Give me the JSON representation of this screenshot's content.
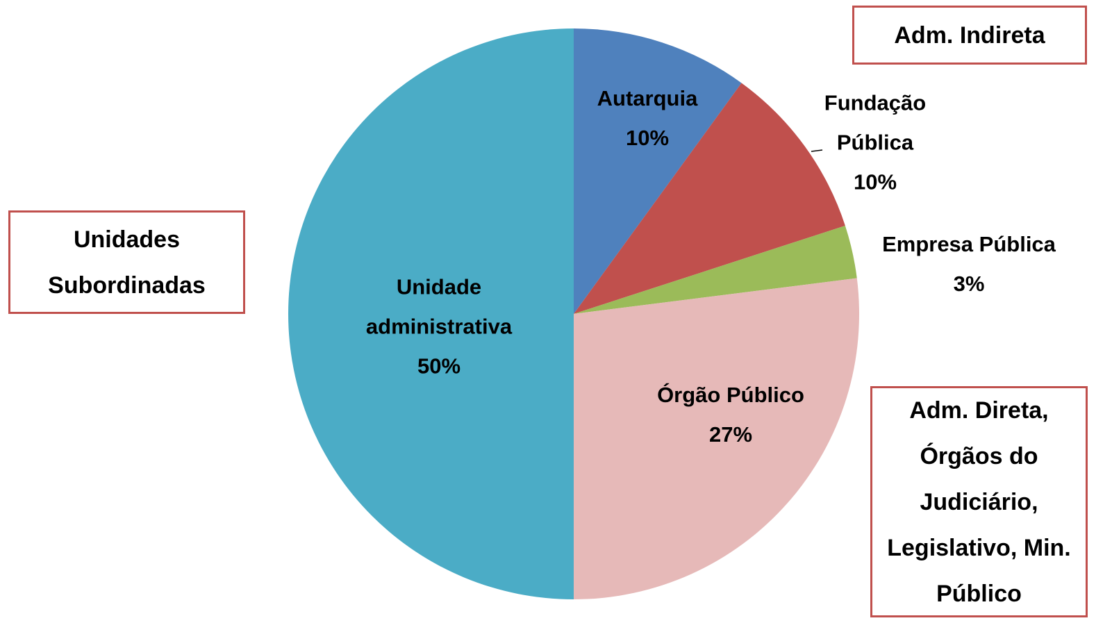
{
  "chart_data": {
    "type": "pie",
    "categories": [
      "Autarquia",
      "Fundação Pública",
      "Empresa Pública",
      "Órgão Público",
      "Unidade administrativa"
    ],
    "values": [
      10,
      10,
      3,
      27,
      50
    ],
    "value_labels": [
      "10%",
      "10%",
      "3%",
      "27%",
      "50%"
    ],
    "colors": [
      "#4f81bd",
      "#c0504d",
      "#9bbb59",
      "#e6b9b8",
      "#4bacc6"
    ],
    "annotations": [
      "Adm. Indireta",
      "Unidades Subordinadas",
      "Adm. Direta, Órgãos do Judiciário, Legislativo, Min. Público"
    ]
  }
}
